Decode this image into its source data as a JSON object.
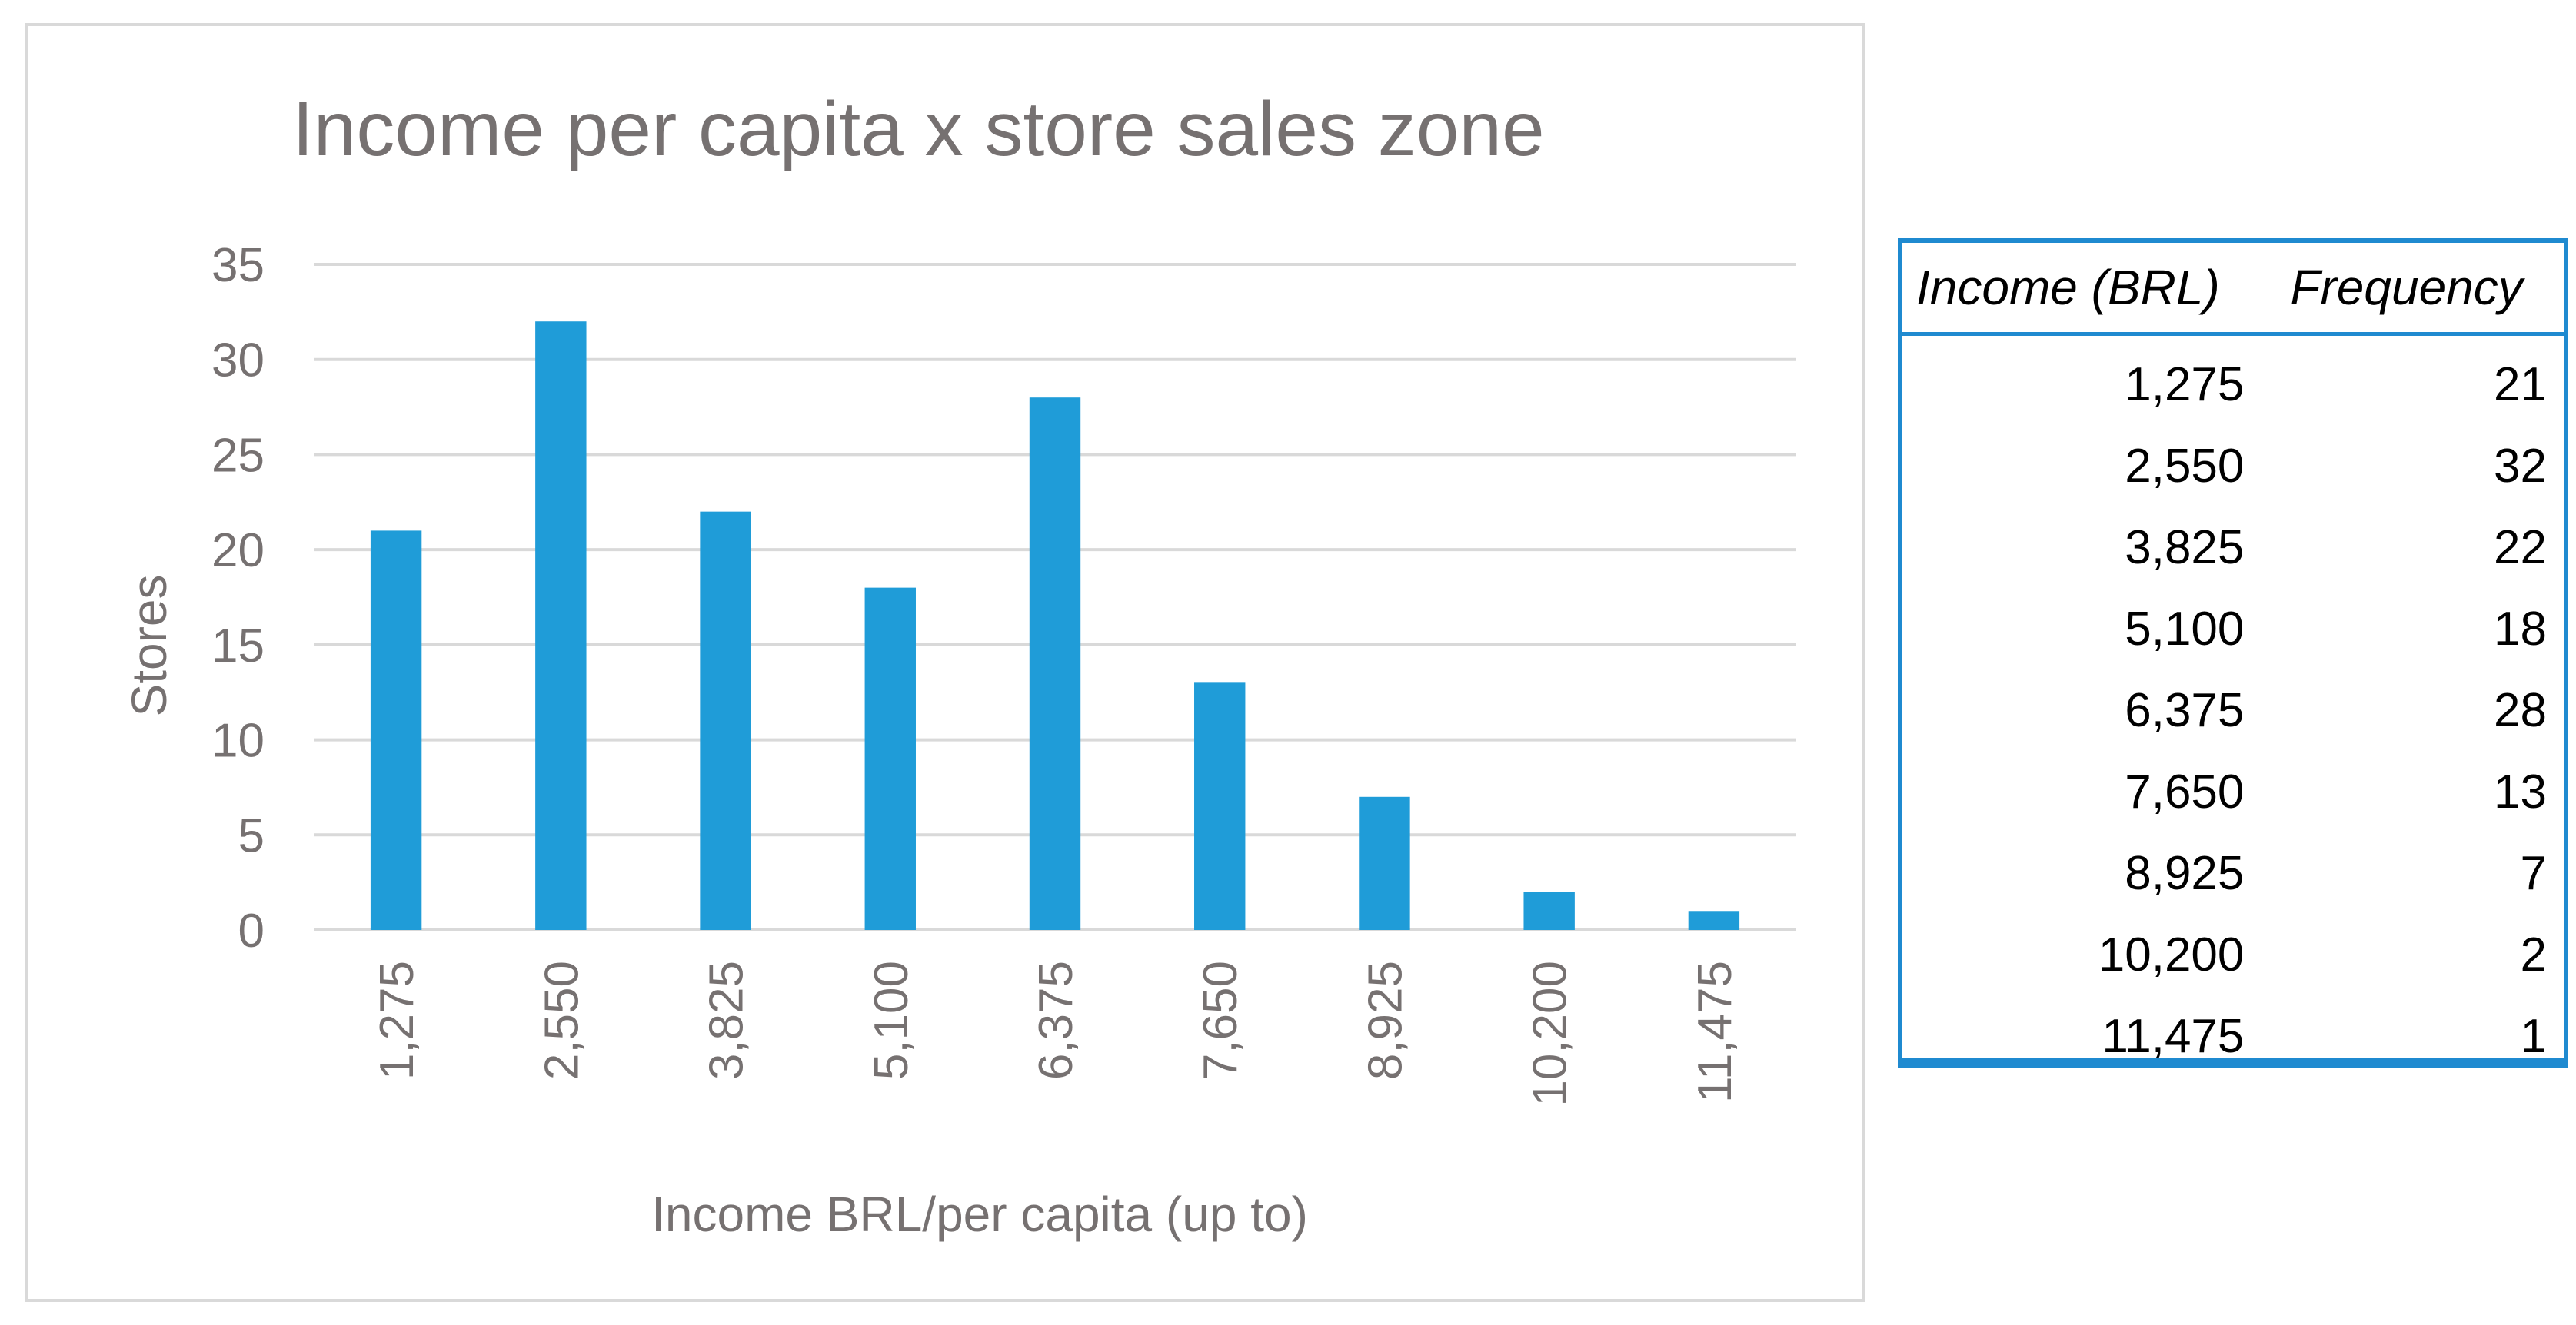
{
  "chart_data": {
    "type": "bar",
    "title": "Income per capita x store sales zone",
    "xlabel": "Income BRL/per capita (up to)",
    "ylabel": "Stores",
    "categories": [
      "1,275",
      "2,550",
      "3,825",
      "5,100",
      "6,375",
      "7,650",
      "8,925",
      "10,200",
      "11,475"
    ],
    "values": [
      21,
      32,
      22,
      18,
      28,
      13,
      7,
      2,
      1
    ],
    "ylim": [
      0,
      35
    ],
    "yticks": [
      "0",
      "5",
      "10",
      "15",
      "20",
      "25",
      "30",
      "35"
    ],
    "ytick_values": [
      0,
      5,
      10,
      15,
      20,
      25,
      30,
      35
    ],
    "grid": "horizontal",
    "bar_color": "#1f9cd8",
    "grid_color": "#d9d9d9",
    "text_color": "#767171"
  },
  "table": {
    "headers": [
      "Income (BRL)",
      "Frequency"
    ],
    "rows": [
      [
        "1,275",
        "21"
      ],
      [
        "2,550",
        "32"
      ],
      [
        "3,825",
        "22"
      ],
      [
        "5,100",
        "18"
      ],
      [
        "6,375",
        "28"
      ],
      [
        "7,650",
        "13"
      ],
      [
        "8,925",
        "7"
      ],
      [
        "10,200",
        "2"
      ],
      [
        "11,475",
        "1"
      ]
    ],
    "border_color": "#1f8ad0"
  }
}
